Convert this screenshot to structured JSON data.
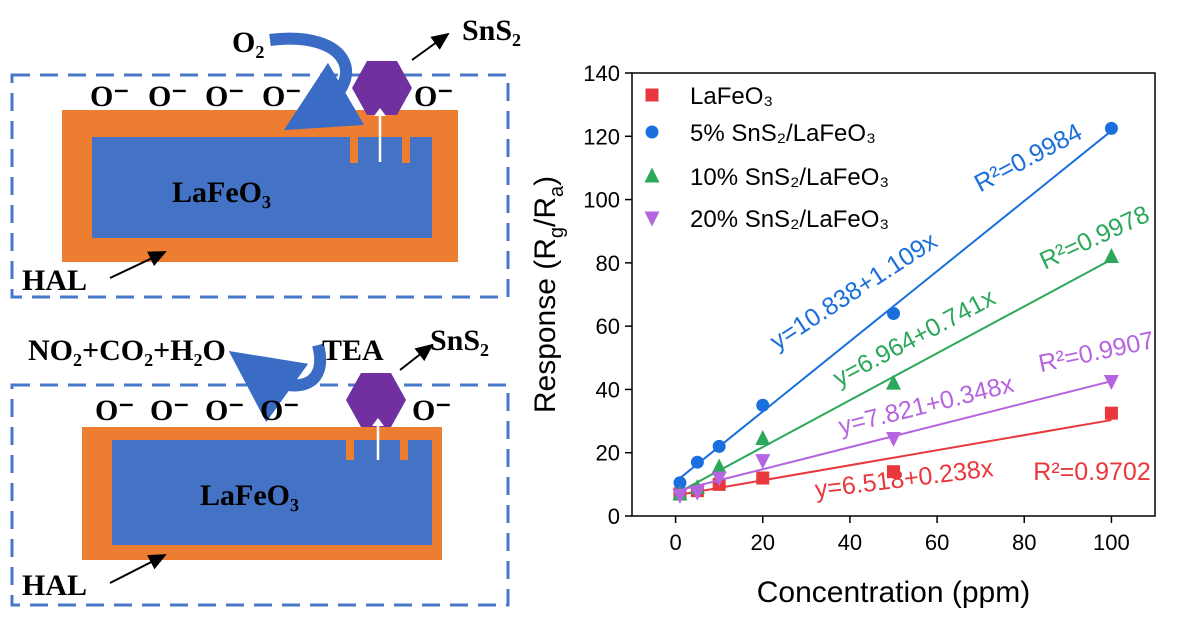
{
  "diagram": {
    "top": {
      "gas": "O₂",
      "particle": "SnS₂",
      "ions": [
        "O⁻",
        "O⁻",
        "O⁻",
        "O⁻",
        "O⁻"
      ],
      "core": "LaFeO₃",
      "layer": "HAL"
    },
    "bottom": {
      "product": "NO₂+CO₂+H₂O",
      "gas": "TEA",
      "particle": "SnS₂",
      "ions": [
        "O⁻",
        "O⁻",
        "O⁻",
        "O⁻",
        "O⁻"
      ],
      "core": "LaFeO₃",
      "layer": "HAL"
    }
  },
  "chart_data": {
    "type": "scatter",
    "xlabel": "Concentration (ppm)",
    "ylabel": [
      {
        "text": "Response (R"
      },
      {
        "text": "g",
        "sub": true
      },
      {
        "text": "/R"
      },
      {
        "text": "a",
        "sub": true
      },
      {
        "text": ")"
      }
    ],
    "xlim": [
      -10,
      110
    ],
    "xticks": [
      0,
      20,
      40,
      60,
      80,
      100
    ],
    "ylim": [
      0,
      140
    ],
    "yticks": [
      0,
      20,
      40,
      60,
      80,
      100,
      120,
      140
    ],
    "legend": "upper left",
    "series": [
      {
        "name": "LaFeO₃",
        "color": "#e8383d",
        "marker": "square",
        "x": [
          1,
          5,
          10,
          20,
          50,
          100
        ],
        "values": [
          7,
          8,
          10,
          12,
          14,
          32.5
        ],
        "fit": {
          "intercept": 6.518,
          "slope": 0.238
        },
        "fit_label": "y=6.518+0.238x",
        "r2_label": "R²=0.9702"
      },
      {
        "name": "5% SnS₂/LaFeO₃",
        "color": "#1a6fdc",
        "marker": "circle",
        "x": [
          1,
          5,
          10,
          20,
          50,
          100
        ],
        "values": [
          10.5,
          17,
          22,
          35,
          64,
          122.5
        ],
        "fit": {
          "intercept": 10.838,
          "slope": 1.109
        },
        "fit_label": "y=10.838+1.109x",
        "r2_label": "R²=0.9984"
      },
      {
        "name": "10% SnS₂/LaFeO₃",
        "color": "#2ca85a",
        "marker": "triangle-up",
        "x": [
          1,
          5,
          10,
          20,
          50,
          100
        ],
        "values": [
          7,
          9,
          15.5,
          24.5,
          42,
          82
        ],
        "fit": {
          "intercept": 6.964,
          "slope": 0.741
        },
        "fit_label": "y=6.964+0.741x",
        "r2_label": "R²=0.9978"
      },
      {
        "name": "20% SnS₂/LaFeO₃",
        "color": "#b565e0",
        "marker": "triangle-down",
        "x": [
          1,
          5,
          10,
          20,
          50,
          100
        ],
        "values": [
          6.5,
          7.5,
          12,
          17.5,
          24.5,
          42.5
        ],
        "fit": {
          "intercept": 7.821,
          "slope": 0.348
        },
        "fit_label": "y=7.821+0.348x",
        "r2_label": "R²=0.9907"
      }
    ]
  }
}
